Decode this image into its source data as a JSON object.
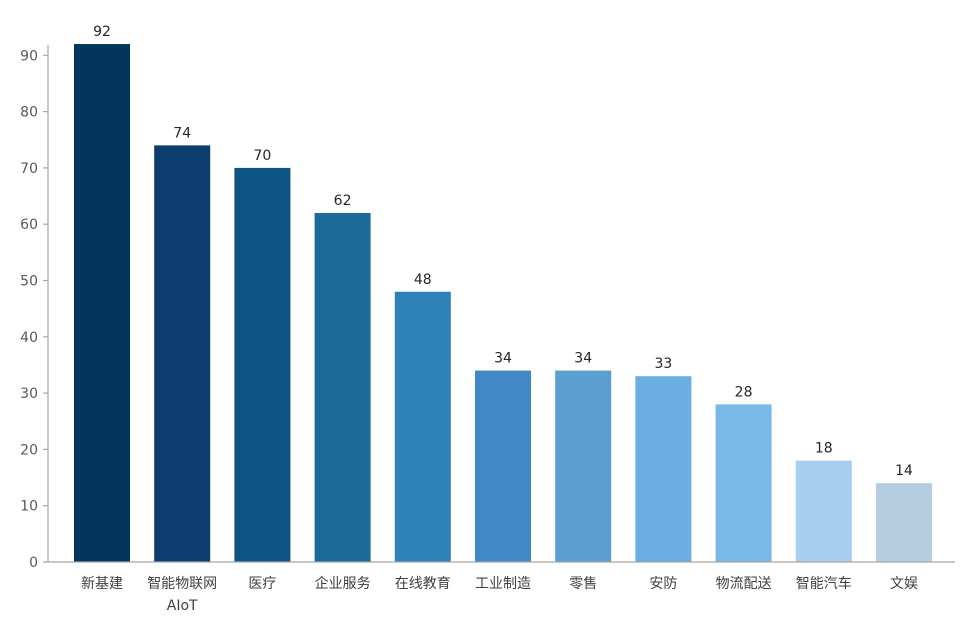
{
  "chart_data": {
    "type": "bar",
    "categories": [
      [
        "新基建"
      ],
      [
        "智能物联网",
        "AIoT"
      ],
      [
        "医疗"
      ],
      [
        "企业服务"
      ],
      [
        "在线教育"
      ],
      [
        "工业制造"
      ],
      [
        "零售"
      ],
      [
        "安防"
      ],
      [
        "物流配送"
      ],
      [
        "智能汽车"
      ],
      [
        "文娱"
      ]
    ],
    "values": [
      92,
      74,
      70,
      62,
      48,
      34,
      34,
      33,
      28,
      18,
      14
    ],
    "colors": [
      "#02365c",
      "#0d3d6e",
      "#0d5585",
      "#1b6b99",
      "#2e80b8",
      "#4189c6",
      "#5b9fd0",
      "#6aaee2",
      "#7ab8e8",
      "#a7cdef",
      "#b4cbe0"
    ],
    "ylim": [
      0,
      90
    ],
    "yticks": [
      0,
      10,
      20,
      30,
      40,
      50,
      60,
      70,
      80,
      90
    ],
    "title": "",
    "xlabel": "",
    "ylabel": "",
    "grid": false,
    "legend": "none"
  }
}
